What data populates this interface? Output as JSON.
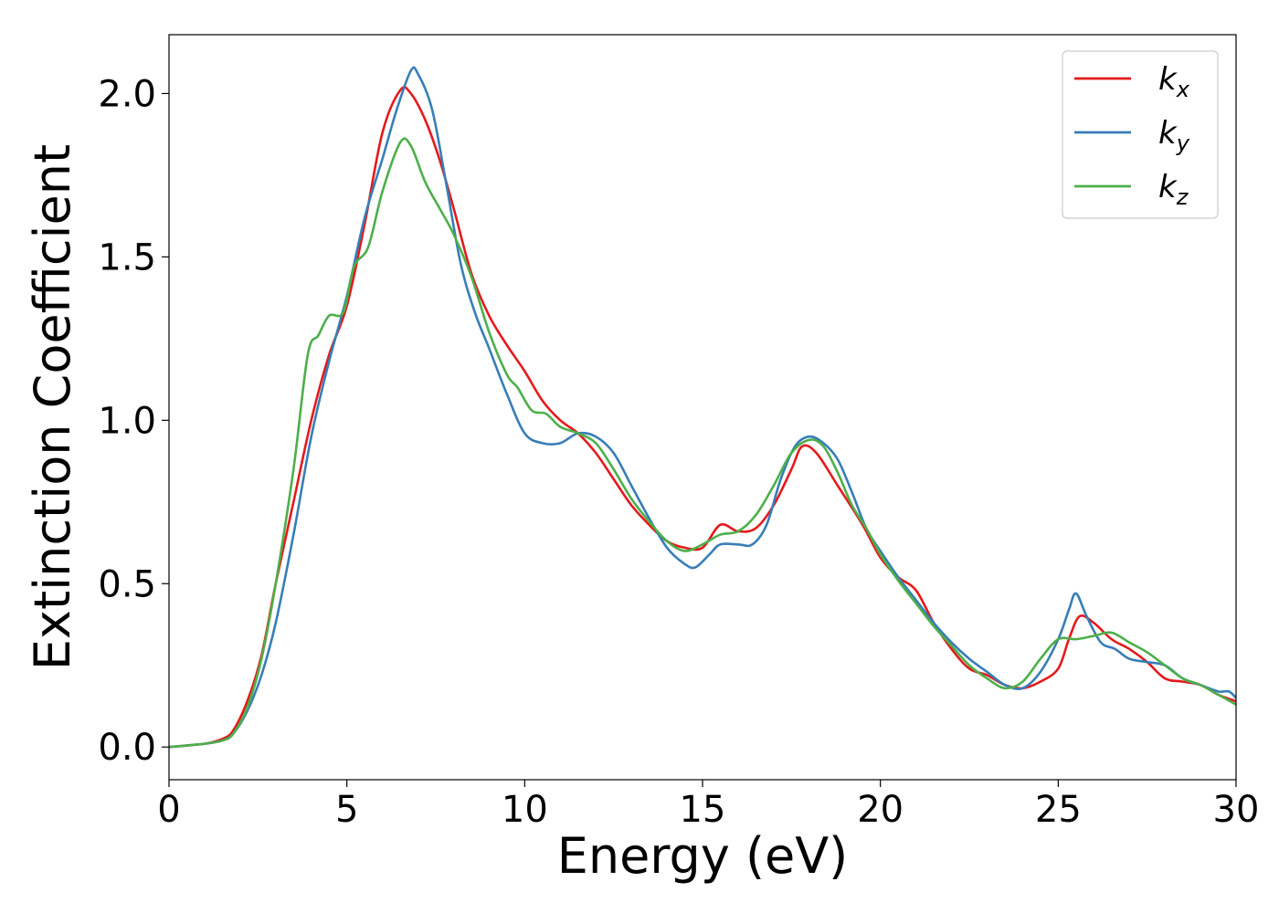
{
  "chart_data": {
    "type": "line",
    "title": "",
    "xlabel": "Energy (eV)",
    "ylabel": "Extinction Coefficient",
    "xlim": [
      0,
      30
    ],
    "ylim": [
      -0.1,
      2.18
    ],
    "xticks": [
      0,
      5,
      10,
      15,
      20,
      25,
      30
    ],
    "xtick_labels": [
      "0",
      "5",
      "10",
      "15",
      "20",
      "25",
      "30"
    ],
    "yticks": [
      0.0,
      0.5,
      1.0,
      1.5,
      2.0
    ],
    "ytick_labels": [
      "0.0",
      "0.5",
      "1.0",
      "1.5",
      "2.0"
    ],
    "grid": false,
    "legend_position": "top-right",
    "series": [
      {
        "name": "k",
        "name_sub": "x",
        "color": "#e41a1c",
        "points": [
          [
            0,
            0
          ],
          [
            1,
            0.01
          ],
          [
            1.5,
            0.025
          ],
          [
            1.8,
            0.05
          ],
          [
            2.2,
            0.14
          ],
          [
            2.6,
            0.28
          ],
          [
            3.0,
            0.5
          ],
          [
            3.5,
            0.75
          ],
          [
            4.0,
            1.0
          ],
          [
            4.5,
            1.2
          ],
          [
            5.0,
            1.35
          ],
          [
            5.5,
            1.6
          ],
          [
            6.0,
            1.88
          ],
          [
            6.5,
            2.01
          ],
          [
            6.8,
            2.0
          ],
          [
            7.2,
            1.92
          ],
          [
            7.6,
            1.8
          ],
          [
            8.0,
            1.65
          ],
          [
            8.5,
            1.45
          ],
          [
            9.0,
            1.32
          ],
          [
            9.5,
            1.23
          ],
          [
            10.0,
            1.15
          ],
          [
            10.5,
            1.06
          ],
          [
            11.0,
            1.0
          ],
          [
            11.5,
            0.96
          ],
          [
            12.0,
            0.9
          ],
          [
            12.5,
            0.82
          ],
          [
            13.0,
            0.74
          ],
          [
            13.5,
            0.68
          ],
          [
            14.0,
            0.63
          ],
          [
            14.5,
            0.61
          ],
          [
            15.0,
            0.61
          ],
          [
            15.5,
            0.68
          ],
          [
            16.0,
            0.66
          ],
          [
            16.5,
            0.67
          ],
          [
            17.0,
            0.74
          ],
          [
            17.5,
            0.85
          ],
          [
            17.8,
            0.92
          ],
          [
            18.2,
            0.9
          ],
          [
            18.8,
            0.8
          ],
          [
            19.5,
            0.68
          ],
          [
            20.0,
            0.58
          ],
          [
            20.5,
            0.52
          ],
          [
            21.0,
            0.48
          ],
          [
            21.5,
            0.38
          ],
          [
            22.0,
            0.3
          ],
          [
            22.5,
            0.24
          ],
          [
            23.0,
            0.22
          ],
          [
            23.5,
            0.19
          ],
          [
            24.0,
            0.18
          ],
          [
            24.5,
            0.2
          ],
          [
            25.0,
            0.24
          ],
          [
            25.3,
            0.33
          ],
          [
            25.6,
            0.4
          ],
          [
            26.0,
            0.38
          ],
          [
            26.5,
            0.33
          ],
          [
            27.0,
            0.3
          ],
          [
            27.5,
            0.26
          ],
          [
            28.0,
            0.21
          ],
          [
            28.5,
            0.2
          ],
          [
            29.0,
            0.19
          ],
          [
            29.5,
            0.16
          ],
          [
            30.0,
            0.14
          ]
        ]
      },
      {
        "name": "k",
        "name_sub": "y",
        "color": "#377eb8",
        "points": [
          [
            0,
            0
          ],
          [
            1,
            0.01
          ],
          [
            1.5,
            0.02
          ],
          [
            1.8,
            0.04
          ],
          [
            2.2,
            0.11
          ],
          [
            2.6,
            0.22
          ],
          [
            3.0,
            0.38
          ],
          [
            3.5,
            0.65
          ],
          [
            4.0,
            0.95
          ],
          [
            4.5,
            1.18
          ],
          [
            5.0,
            1.38
          ],
          [
            5.5,
            1.62
          ],
          [
            6.0,
            1.8
          ],
          [
            6.4,
            1.95
          ],
          [
            6.8,
            2.07
          ],
          [
            7.0,
            2.06
          ],
          [
            7.4,
            1.95
          ],
          [
            7.8,
            1.72
          ],
          [
            8.2,
            1.48
          ],
          [
            8.6,
            1.33
          ],
          [
            9.0,
            1.22
          ],
          [
            9.5,
            1.08
          ],
          [
            10.0,
            0.96
          ],
          [
            10.5,
            0.93
          ],
          [
            11.0,
            0.93
          ],
          [
            11.5,
            0.96
          ],
          [
            12.0,
            0.95
          ],
          [
            12.5,
            0.9
          ],
          [
            13.0,
            0.8
          ],
          [
            13.5,
            0.7
          ],
          [
            14.0,
            0.61
          ],
          [
            14.5,
            0.56
          ],
          [
            14.8,
            0.55
          ],
          [
            15.2,
            0.59
          ],
          [
            15.5,
            0.62
          ],
          [
            16.0,
            0.62
          ],
          [
            16.4,
            0.62
          ],
          [
            16.8,
            0.68
          ],
          [
            17.2,
            0.82
          ],
          [
            17.6,
            0.92
          ],
          [
            18.0,
            0.95
          ],
          [
            18.4,
            0.93
          ],
          [
            18.8,
            0.88
          ],
          [
            19.2,
            0.78
          ],
          [
            19.6,
            0.67
          ],
          [
            20.0,
            0.6
          ],
          [
            20.5,
            0.52
          ],
          [
            21.0,
            0.45
          ],
          [
            21.5,
            0.38
          ],
          [
            22.0,
            0.32
          ],
          [
            22.5,
            0.27
          ],
          [
            23.0,
            0.23
          ],
          [
            23.5,
            0.19
          ],
          [
            24.0,
            0.18
          ],
          [
            24.5,
            0.23
          ],
          [
            25.0,
            0.33
          ],
          [
            25.3,
            0.42
          ],
          [
            25.5,
            0.47
          ],
          [
            25.8,
            0.4
          ],
          [
            26.2,
            0.32
          ],
          [
            26.6,
            0.3
          ],
          [
            27.0,
            0.27
          ],
          [
            27.5,
            0.26
          ],
          [
            28.0,
            0.25
          ],
          [
            28.5,
            0.21
          ],
          [
            29.0,
            0.19
          ],
          [
            29.5,
            0.17
          ],
          [
            29.8,
            0.17
          ],
          [
            30.0,
            0.15
          ]
        ]
      },
      {
        "name": "k",
        "name_sub": "z",
        "color": "#4daf4a",
        "points": [
          [
            0,
            0
          ],
          [
            1,
            0.01
          ],
          [
            1.5,
            0.02
          ],
          [
            1.8,
            0.04
          ],
          [
            2.2,
            0.12
          ],
          [
            2.6,
            0.27
          ],
          [
            3.0,
            0.5
          ],
          [
            3.5,
            0.85
          ],
          [
            3.9,
            1.2
          ],
          [
            4.2,
            1.26
          ],
          [
            4.5,
            1.32
          ],
          [
            4.9,
            1.33
          ],
          [
            5.2,
            1.47
          ],
          [
            5.6,
            1.53
          ],
          [
            6.0,
            1.7
          ],
          [
            6.5,
            1.85
          ],
          [
            6.8,
            1.84
          ],
          [
            7.2,
            1.73
          ],
          [
            7.6,
            1.65
          ],
          [
            8.0,
            1.57
          ],
          [
            8.5,
            1.44
          ],
          [
            9.0,
            1.27
          ],
          [
            9.5,
            1.14
          ],
          [
            9.8,
            1.1
          ],
          [
            10.2,
            1.03
          ],
          [
            10.6,
            1.02
          ],
          [
            11.0,
            0.98
          ],
          [
            11.5,
            0.96
          ],
          [
            12.0,
            0.93
          ],
          [
            12.5,
            0.85
          ],
          [
            13.0,
            0.76
          ],
          [
            13.5,
            0.69
          ],
          [
            14.0,
            0.63
          ],
          [
            14.5,
            0.6
          ],
          [
            15.0,
            0.62
          ],
          [
            15.5,
            0.65
          ],
          [
            16.0,
            0.66
          ],
          [
            16.5,
            0.71
          ],
          [
            17.0,
            0.8
          ],
          [
            17.5,
            0.9
          ],
          [
            18.0,
            0.94
          ],
          [
            18.4,
            0.92
          ],
          [
            18.8,
            0.84
          ],
          [
            19.2,
            0.74
          ],
          [
            19.6,
            0.67
          ],
          [
            20.0,
            0.59
          ],
          [
            20.5,
            0.51
          ],
          [
            21.0,
            0.44
          ],
          [
            21.5,
            0.37
          ],
          [
            22.0,
            0.31
          ],
          [
            22.5,
            0.25
          ],
          [
            23.0,
            0.21
          ],
          [
            23.5,
            0.18
          ],
          [
            24.0,
            0.2
          ],
          [
            24.5,
            0.27
          ],
          [
            25.0,
            0.33
          ],
          [
            25.5,
            0.33
          ],
          [
            26.0,
            0.34
          ],
          [
            26.5,
            0.35
          ],
          [
            27.0,
            0.32
          ],
          [
            27.5,
            0.29
          ],
          [
            28.0,
            0.25
          ],
          [
            28.5,
            0.21
          ],
          [
            29.0,
            0.19
          ],
          [
            29.5,
            0.16
          ],
          [
            30.0,
            0.13
          ]
        ]
      }
    ]
  }
}
